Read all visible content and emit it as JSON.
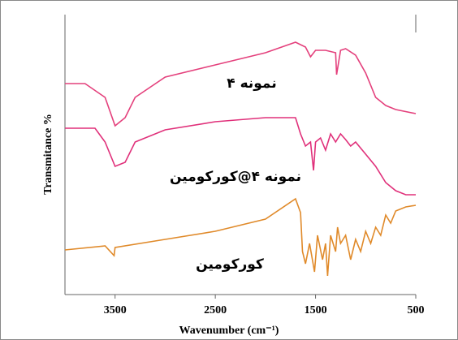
{
  "chart_data": {
    "type": "line",
    "xlabel": "Wavenumber (cm⁻¹)",
    "ylabel": "Transmitance %",
    "xlim": [
      4000,
      500
    ],
    "xticks": [
      3500,
      2500,
      1500,
      500
    ],
    "ylim": [
      0,
      345
    ],
    "series": [
      {
        "name": "نمونه ۴",
        "color": "#e4407c",
        "x": [
          4000,
          3800,
          3600,
          3500,
          3400,
          3300,
          3000,
          2500,
          2000,
          1700,
          1600,
          1550,
          1500,
          1400,
          1300,
          1290,
          1250,
          1200,
          1100,
          1000,
          900,
          800,
          700,
          500
        ],
        "values": [
          260,
          260,
          243,
          208,
          218,
          243,
          268,
          283,
          298,
          311,
          305,
          293,
          301,
          301,
          298,
          271,
          301,
          303,
          295,
          273,
          243,
          233,
          228,
          223
        ]
      },
      {
        "name": "نمونه ۴@کورکومین",
        "color": "#e0307a",
        "x": [
          4000,
          3700,
          3600,
          3500,
          3400,
          3300,
          3000,
          2500,
          2000,
          1700,
          1650,
          1600,
          1550,
          1520,
          1500,
          1450,
          1400,
          1350,
          1300,
          1250,
          1200,
          1150,
          1100,
          1000,
          900,
          800,
          700,
          600,
          500
        ],
        "values": [
          205,
          205,
          188,
          158,
          163,
          188,
          203,
          213,
          218,
          218,
          198,
          183,
          188,
          153,
          188,
          193,
          178,
          198,
          188,
          198,
          191,
          183,
          188,
          173,
          158,
          138,
          128,
          123,
          123
        ]
      },
      {
        "name": "کورکومین",
        "color": "#e08a2a",
        "x": [
          4000,
          3600,
          3510,
          3500,
          3000,
          2500,
          2000,
          1700,
          1650,
          1630,
          1600,
          1560,
          1510,
          1480,
          1430,
          1400,
          1380,
          1350,
          1300,
          1280,
          1250,
          1200,
          1150,
          1100,
          1050,
          1000,
          950,
          900,
          850,
          800,
          750,
          700,
          600,
          500
        ],
        "values": [
          55,
          60,
          48,
          58,
          68,
          78,
          93,
          118,
          101,
          53,
          38,
          63,
          28,
          73,
          43,
          63,
          23,
          73,
          53,
          83,
          63,
          73,
          43,
          68,
          53,
          78,
          63,
          83,
          73,
          98,
          88,
          103,
          108,
          110
        ]
      }
    ]
  }
}
